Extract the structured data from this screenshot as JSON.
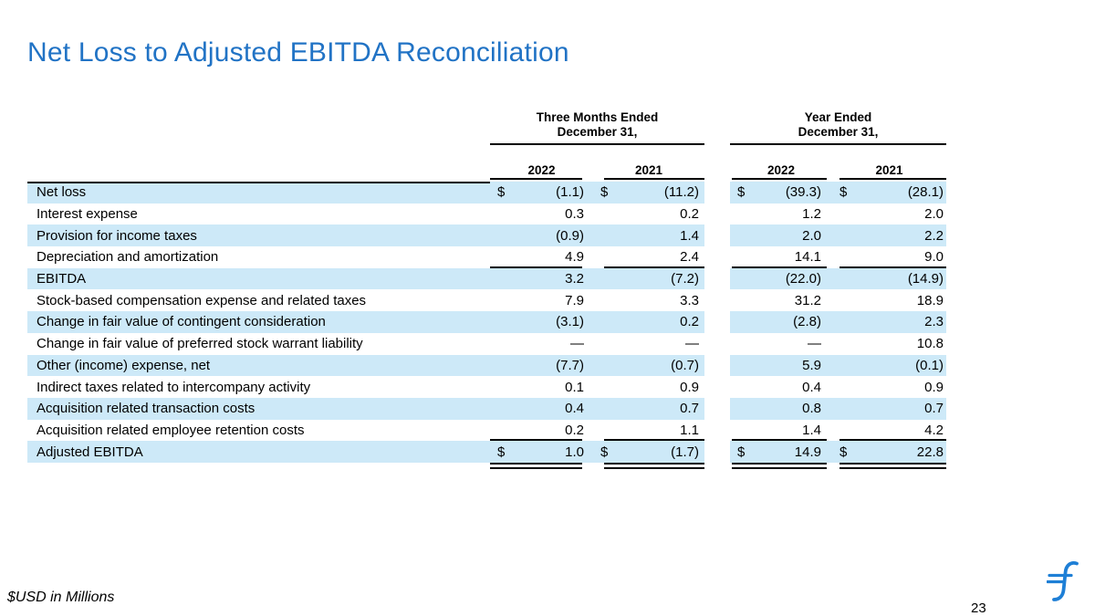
{
  "slide": {
    "title": "Net Loss to Adjusted EBITDA Reconciliation",
    "footnote": "$USD in Millions",
    "page_number": "23",
    "colors": {
      "accent_blue": "#2173C5",
      "logo_blue": "#1E7FD6",
      "row_stripe": "#CDE9F8"
    }
  },
  "table": {
    "currency_symbol": "$",
    "groups": [
      {
        "line1": "Three Months Ended",
        "line2": "December 31,",
        "years": [
          "2022",
          "2021"
        ]
      },
      {
        "line1": "Year Ended",
        "line2": "December 31,",
        "years": [
          "2022",
          "2021"
        ]
      }
    ],
    "rows": [
      {
        "label": "Net loss",
        "dollar": true,
        "shaded": true,
        "values": [
          "(1.1)",
          "(11.2)",
          "(39.3)",
          "(28.1)"
        ]
      },
      {
        "label": "Interest expense",
        "shaded": false,
        "values": [
          "0.3",
          "0.2",
          "1.2",
          "2.0"
        ]
      },
      {
        "label": "Provision for income taxes",
        "shaded": true,
        "values": [
          "(0.9)",
          "1.4",
          "2.0",
          "2.2"
        ]
      },
      {
        "label": "Depreciation and amortization",
        "shaded": false,
        "rule_below": true,
        "values": [
          "4.9",
          "2.4",
          "14.1",
          "9.0"
        ]
      },
      {
        "label": "EBITDA",
        "shaded": true,
        "values": [
          "3.2",
          "(7.2)",
          "(22.0)",
          "(14.9)"
        ]
      },
      {
        "label": "Stock-based compensation expense and related taxes",
        "shaded": false,
        "values": [
          "7.9",
          "3.3",
          "31.2",
          "18.9"
        ]
      },
      {
        "label": "Change in fair value of contingent consideration",
        "shaded": true,
        "values": [
          "(3.1)",
          "0.2",
          "(2.8)",
          "2.3"
        ]
      },
      {
        "label": "Change in fair value of preferred stock warrant liability",
        "shaded": false,
        "values": [
          "—",
          "—",
          "—",
          "10.8"
        ]
      },
      {
        "label": "Other (income) expense, net",
        "shaded": true,
        "values": [
          "(7.7)",
          "(0.7)",
          "5.9",
          "(0.1)"
        ]
      },
      {
        "label": "Indirect taxes related to intercompany activity",
        "shaded": false,
        "values": [
          "0.1",
          "0.9",
          "0.4",
          "0.9"
        ]
      },
      {
        "label": "Acquisition related transaction costs",
        "shaded": true,
        "values": [
          "0.4",
          "0.7",
          "0.8",
          "0.7"
        ]
      },
      {
        "label": "Acquisition related employee retention costs",
        "shaded": false,
        "rule_below": true,
        "values": [
          "0.2",
          "1.1",
          "1.4",
          "4.2"
        ]
      },
      {
        "label": "Adjusted EBITDA",
        "dollar": true,
        "shaded": true,
        "double_rule_below": true,
        "values": [
          "1.0",
          "(1.7)",
          "14.9",
          "22.8"
        ]
      }
    ]
  }
}
